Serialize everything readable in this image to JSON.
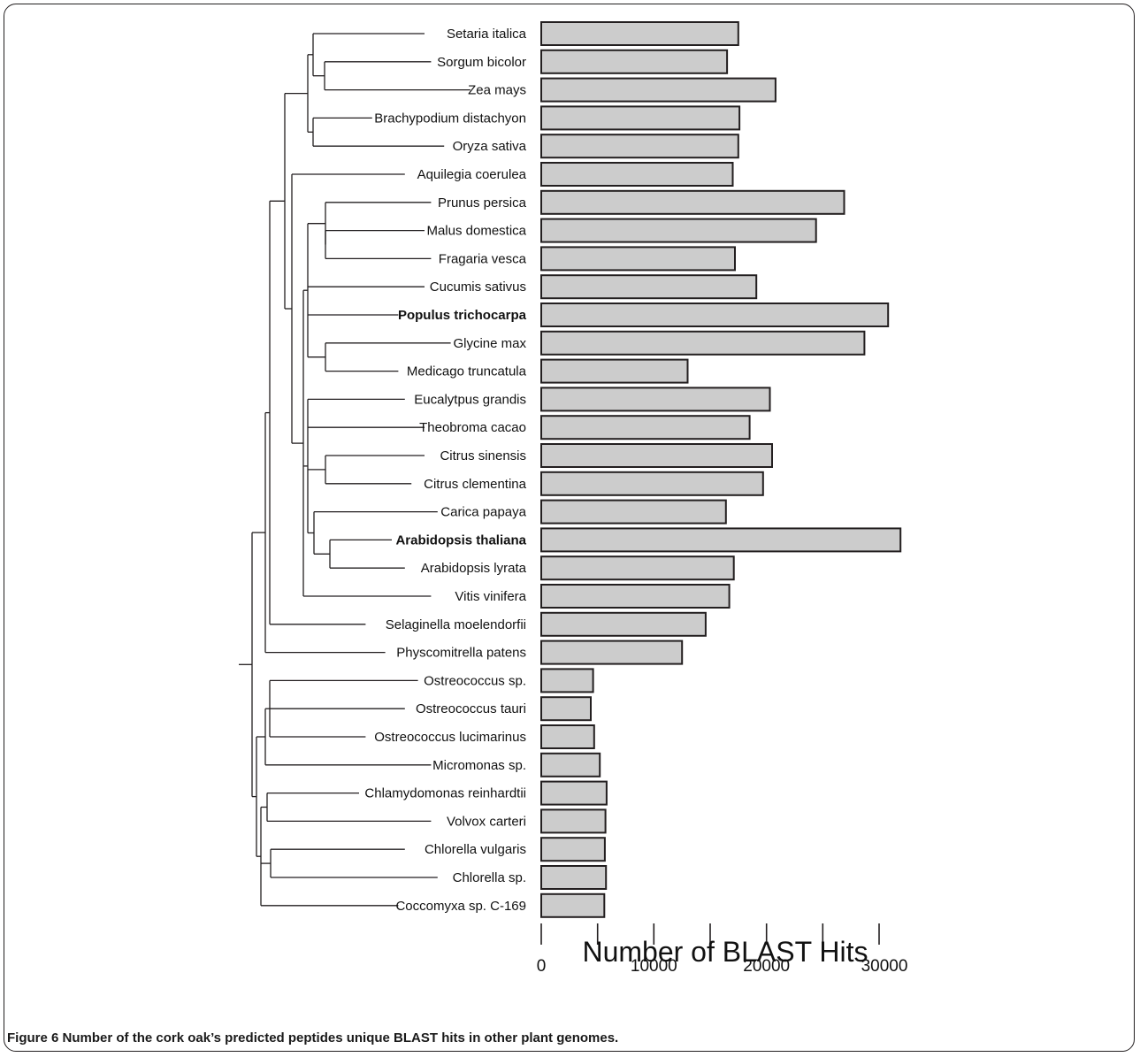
{
  "figure": {
    "caption_label": "Figure 6",
    "caption_text": "Number of the cork oak’s predicted peptides unique BLAST hits in other plant genomes."
  },
  "chart_data": {
    "type": "bar",
    "orientation": "horizontal",
    "categories": [
      "Setaria italica",
      "Sorgum bicolor",
      "Zea mays",
      "Brachypodium distachyon",
      "Oryza sativa",
      "Aquilegia coerulea",
      "Prunus persica",
      "Malus domestica",
      "Fragaria vesca",
      "Cucumis sativus",
      "Populus trichocarpa",
      "Glycine max",
      "Medicago truncatula",
      "Eucalytpus grandis",
      "Theobroma cacao",
      "Citrus sinensis",
      "Citrus clementina",
      "Carica papaya",
      "Arabidopsis thaliana",
      "Arabidopsis lyrata",
      "Vitis vinifera",
      "Selaginella moelendorfii",
      "Physcomitrella patens",
      "Ostreococcus sp.",
      "Ostreococcus tauri",
      "Ostreococcus lucimarinus",
      "Micromonas sp.",
      "Chlamydomonas reinhardtii",
      "Volvox carteri",
      "Chlorella vulgaris",
      "Chlorella sp.",
      "Coccomyxa sp. C-169"
    ],
    "bold_categories": [
      "Populus trichocarpa",
      "Arabidopsis thaliana"
    ],
    "values": [
      17500,
      16500,
      20800,
      17600,
      17500,
      17000,
      26900,
      24400,
      17200,
      19100,
      30800,
      28700,
      13000,
      20300,
      18500,
      20500,
      19700,
      16400,
      31900,
      17100,
      16700,
      14600,
      12500,
      4600,
      4400,
      4700,
      5200,
      5800,
      5700,
      5650,
      5750,
      5600
    ],
    "xlim": [
      0,
      32000
    ],
    "xticks": [
      0,
      10000,
      20000,
      30000
    ],
    "xtick_labels": [
      "0",
      "10000",
      "20000",
      "30000"
    ],
    "xlabel": "Number of BLAST Hits",
    "bar_color": "#cccccc",
    "bar_edge_color": "#231f20",
    "has_dendrogram": true
  }
}
